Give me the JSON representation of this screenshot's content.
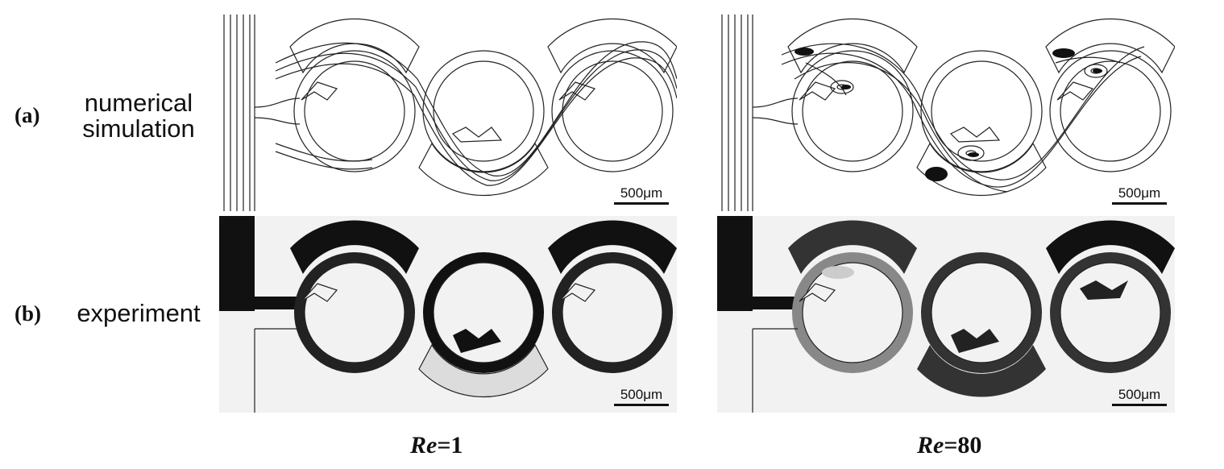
{
  "rows": [
    {
      "tag": "(a)",
      "description_lines": [
        "numerical",
        "simulation"
      ]
    },
    {
      "tag": "(b)",
      "description_lines": [
        "experiment"
      ]
    }
  ],
  "scale_bar": "500μm",
  "columns": [
    {
      "re_symbol": "Re",
      "re_value": "=1"
    },
    {
      "re_symbol": "Re",
      "re_value": "=80"
    }
  ],
  "colors": {
    "fluid_dark": "#111111",
    "background_light": "#f2f2f2",
    "channel_line": "#222222"
  }
}
